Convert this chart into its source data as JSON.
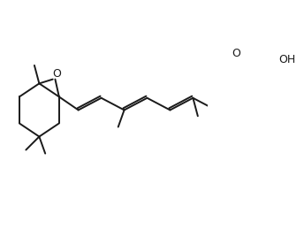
{
  "background_color": "#ffffff",
  "line_color": "#1a1a1a",
  "lw": 1.4,
  "figsize": [
    3.44,
    2.68
  ],
  "dpi": 100,
  "xlim": [
    0,
    344
  ],
  "ylim": [
    0,
    268
  ]
}
